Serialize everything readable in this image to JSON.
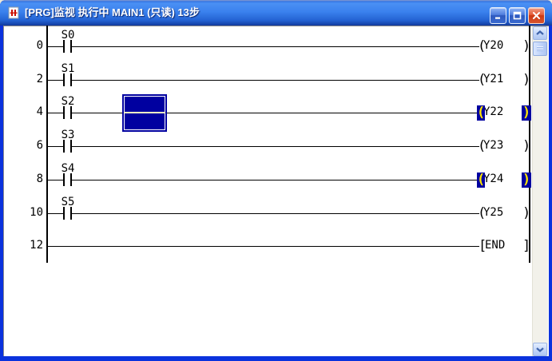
{
  "window": {
    "title": "[PRG]监视 执行中 MAIN1 (只读) 13步",
    "icon": "ladder-monitor-icon",
    "controls": [
      {
        "label": "minimize",
        "icon": "minimize-icon"
      },
      {
        "label": "maximize",
        "icon": "maximize-icon"
      },
      {
        "label": "close",
        "icon": "close-icon"
      }
    ]
  },
  "ladder": {
    "coil_open": "(",
    "coil_close": ")",
    "instr_open": "[",
    "instr_close": "]",
    "rungs": [
      {
        "step": "0",
        "contact": "S0",
        "coil": "Y20",
        "energized": false
      },
      {
        "step": "2",
        "contact": "S1",
        "coil": "Y21",
        "energized": false
      },
      {
        "step": "4",
        "contact": "S2",
        "coil": "Y22",
        "energized": true,
        "has_cursor": true
      },
      {
        "step": "6",
        "contact": "S3",
        "coil": "Y23",
        "energized": false
      },
      {
        "step": "8",
        "contact": "S4",
        "coil": "Y24",
        "energized": true
      },
      {
        "step": "10",
        "contact": "S5",
        "coil": "Y25",
        "energized": false
      },
      {
        "step": "12",
        "contact": null,
        "instruction": "END"
      }
    ]
  },
  "scrollbar": {
    "up_icon": "chevron-up-icon",
    "down_icon": "chevron-down-icon"
  },
  "colors": {
    "cursor_navy": "#0000A0",
    "cursor_wire_line": "#FFFFC4",
    "energized_bg": "#0000A0",
    "energized_fg": "#FFE600",
    "titlebar_blue": "#3B82EE",
    "border_blue": "#0A32DD",
    "wire_black": "#000000"
  }
}
